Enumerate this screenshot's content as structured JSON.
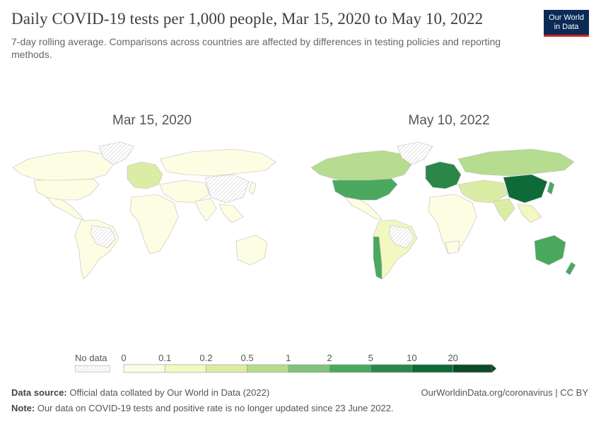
{
  "header": {
    "title": "Daily COVID-19 tests per 1,000 people, Mar 15, 2020 to May 10, 2022",
    "subtitle": "7-day rolling average. Comparisons across countries are affected by differences in testing policies and reporting methods.",
    "logo_line1": "Our World",
    "logo_line2": "in Data"
  },
  "maps": {
    "left_date": "Mar 15, 2020",
    "right_date": "May 10, 2022"
  },
  "legend": {
    "no_data_label": "No data",
    "ticks": [
      "0",
      "0.1",
      "0.2",
      "0.5",
      "1",
      "2",
      "5",
      "10",
      "20"
    ],
    "colors": [
      "#fcfde3",
      "#f2f8c0",
      "#dbeca5",
      "#b6dc8f",
      "#82c27c",
      "#4aa85f",
      "#2a8748",
      "#0e6a37",
      "#0c4a29"
    ]
  },
  "chart_data": {
    "type": "map",
    "title": "Daily COVID-19 tests per 1,000 people, Mar 15, 2020 to May 10, 2022",
    "subtitle": "7-day rolling average.",
    "panels": [
      {
        "date": "Mar 15, 2020",
        "regions": [
          {
            "name": "North America",
            "bin": "0-0.1",
            "color": "#fcfde3"
          },
          {
            "name": "Greenland",
            "bin": "No data",
            "color": "hatch"
          },
          {
            "name": "South America",
            "bin": "0-0.1",
            "color": "#fcfde3"
          },
          {
            "name": "Europe",
            "bin": "0.1-0.5",
            "color": "#dbeca5"
          },
          {
            "name": "Africa",
            "bin": "0-0.1",
            "color": "#fcfde3"
          },
          {
            "name": "Russia",
            "bin": "0-0.1",
            "color": "#fcfde3"
          },
          {
            "name": "China",
            "bin": "No data",
            "color": "hatch"
          },
          {
            "name": "Australia",
            "bin": "0-0.1",
            "color": "#fcfde3"
          }
        ]
      },
      {
        "date": "May 10, 2022",
        "regions": [
          {
            "name": "Canada",
            "bin": "0.5-1",
            "color": "#b6dc8f"
          },
          {
            "name": "United States",
            "bin": "2-5",
            "color": "#4aa85f"
          },
          {
            "name": "Greenland",
            "bin": "No data",
            "color": "hatch"
          },
          {
            "name": "South America",
            "bin": "0-0.2",
            "color": "#f2f8c0"
          },
          {
            "name": "Chile",
            "bin": "2-5",
            "color": "#4aa85f"
          },
          {
            "name": "Europe",
            "bin": "2-10",
            "color": "#2a8748"
          },
          {
            "name": "Russia",
            "bin": "0.5-1",
            "color": "#b6dc8f"
          },
          {
            "name": "China",
            "bin": "10-20",
            "color": "#0e6a37"
          },
          {
            "name": "Africa",
            "bin": "0-0.1",
            "color": "#fcfde3"
          },
          {
            "name": "India",
            "bin": "0.2-0.5",
            "color": "#dbeca5"
          },
          {
            "name": "Australia",
            "bin": "2-5",
            "color": "#4aa85f"
          }
        ]
      }
    ]
  },
  "footer": {
    "source_label": "Data source:",
    "source_text": "Official data collated by Our World in Data (2022)",
    "link": "OurWorldinData.org/coronavirus | CC BY",
    "note_label": "Note:",
    "note_text": "Our data on COVID-19 tests and positive rate is no longer updated since 23 June 2022."
  }
}
